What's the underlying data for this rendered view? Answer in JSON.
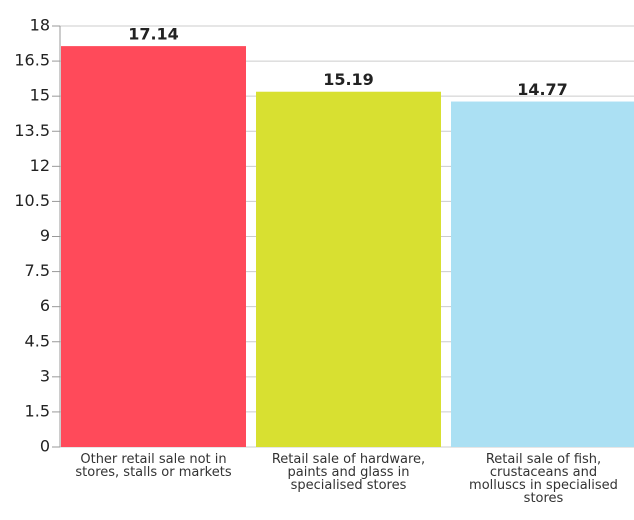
{
  "chart_data": {
    "type": "bar",
    "categories": [
      "Other retail sale not in stores, stalls or markets",
      "Retail sale of hardware, paints and glass in specialised stores",
      "Retail sale of fish, crustaceans and molluscs in specialised stores"
    ],
    "values": [
      17.14,
      15.19,
      14.77
    ],
    "colors": [
      "#ff4a5a",
      "#d8e031",
      "#abe0f3"
    ],
    "ylim": [
      0,
      18
    ],
    "yticks": [
      0,
      1.5,
      3,
      4.5,
      6,
      7.5,
      9,
      10.5,
      12,
      13.5,
      15,
      16.5,
      18
    ],
    "grid": true
  }
}
